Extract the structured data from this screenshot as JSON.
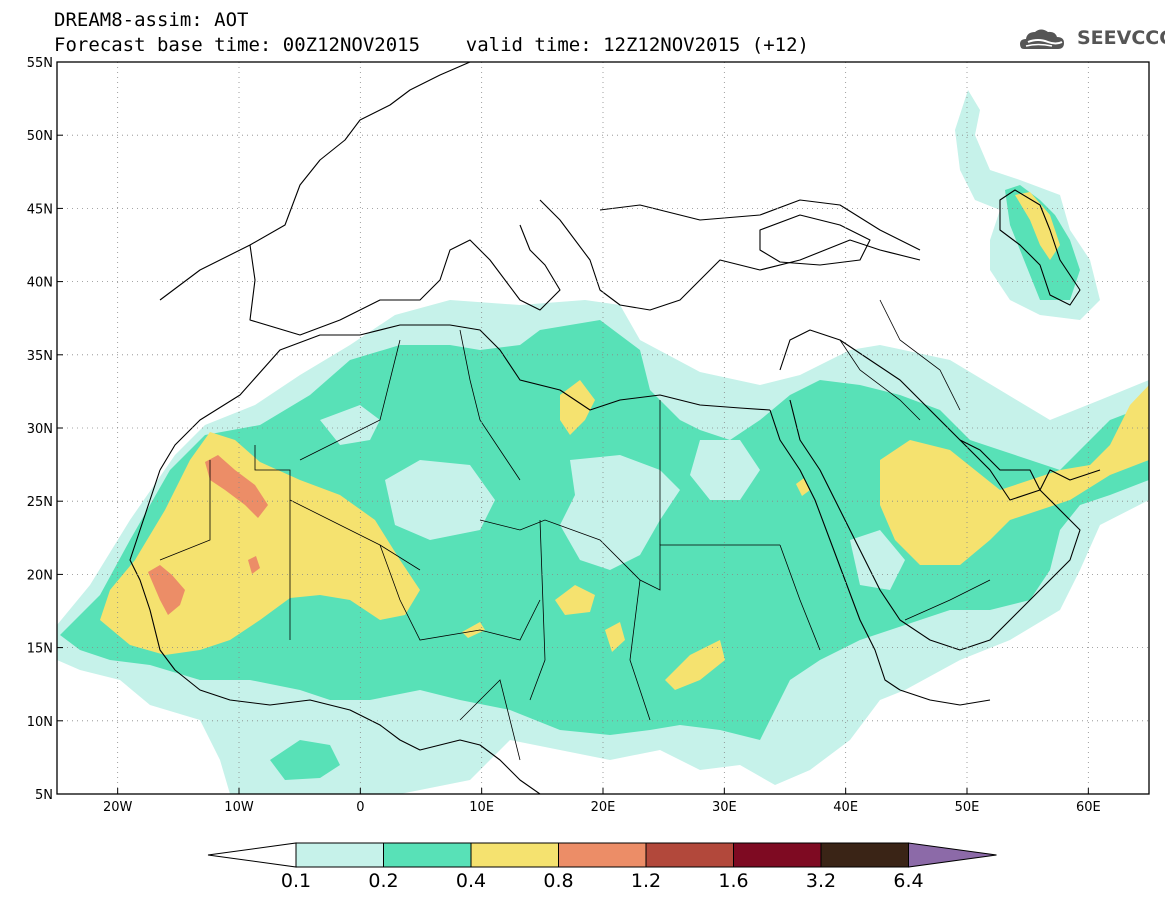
{
  "header": {
    "title_line1": "DREAM8-assim: AOT",
    "title_line2": "Forecast base time: 00Z12NOV2015    valid time: 12Z12NOV2015 (+12)",
    "logo_text": "SEEVCCC",
    "logo_icon": "cloud-icon"
  },
  "map": {
    "lon_range": [
      -25,
      65
    ],
    "lat_range": [
      5,
      55
    ],
    "x_ticks": [
      {
        "lon": -20,
        "label": "20W"
      },
      {
        "lon": -10,
        "label": "10W"
      },
      {
        "lon": 0,
        "label": "0"
      },
      {
        "lon": 10,
        "label": "10E"
      },
      {
        "lon": 20,
        "label": "20E"
      },
      {
        "lon": 30,
        "label": "30E"
      },
      {
        "lon": 40,
        "label": "40E"
      },
      {
        "lon": 50,
        "label": "50E"
      },
      {
        "lon": 60,
        "label": "60E"
      }
    ],
    "y_ticks": [
      {
        "lat": 55,
        "label": "55N"
      },
      {
        "lat": 50,
        "label": "50N"
      },
      {
        "lat": 45,
        "label": "45N"
      },
      {
        "lat": 40,
        "label": "40N"
      },
      {
        "lat": 35,
        "label": "35N"
      },
      {
        "lat": 30,
        "label": "30N"
      },
      {
        "lat": 25,
        "label": "25N"
      },
      {
        "lat": 20,
        "label": "20N"
      },
      {
        "lat": 15,
        "label": "15N"
      },
      {
        "lat": 10,
        "label": "10N"
      },
      {
        "lat": 5,
        "label": "5N"
      }
    ],
    "gridlines": "dotted"
  },
  "colorbar": {
    "labels": [
      "0.1",
      "0.2",
      "0.4",
      "0.8",
      "1.2",
      "1.6",
      "3.2",
      "6.4"
    ],
    "colors": [
      "#ffffff",
      "#c6f2ea",
      "#58e1b7",
      "#f5e26f",
      "#ec8d67",
      "#b2483b",
      "#7e0a22",
      "#3a2416",
      "#8c6aa8"
    ]
  },
  "aot_levels": {
    "c1": "#c6f2ea",
    "c2": "#58e1b7",
    "c3": "#f5e26f",
    "c4": "#ec8d67"
  }
}
